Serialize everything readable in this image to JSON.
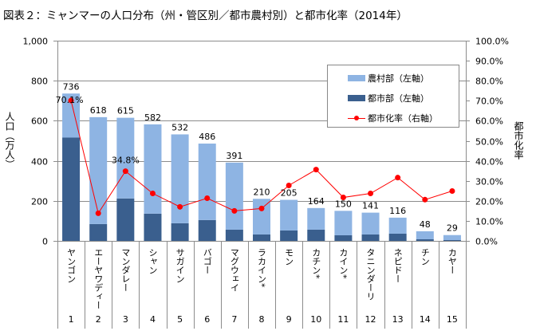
{
  "title": "図表２：ミャンマーの人口分布（州・管区別／都市農村別）と都市化率（2014年）",
  "chart_data": {
    "type": "bar",
    "stacked": true,
    "title": "図表２：ミャンマーの人口分布（州・管区別／都市農村別）と都市化率（2014年）",
    "categories": [
      "ヤンゴン",
      "エーヤワディー",
      "マンダレー",
      "シャン",
      "サガイン",
      "バゴー",
      "マグウェイ",
      "ラカイン*",
      "モン",
      "カチン*",
      "カイン*",
      "タニンダーリ",
      "ネピドー",
      "チン",
      "カヤー"
    ],
    "ranks": [
      "1",
      "2",
      "3",
      "4",
      "5",
      "6",
      "7",
      "8",
      "9",
      "10",
      "11",
      "12",
      "13",
      "14",
      "15"
    ],
    "totals": [
      736,
      618,
      615,
      582,
      532,
      486,
      391,
      210,
      205,
      164,
      150,
      141,
      116,
      48,
      29
    ],
    "total_labels": [
      "736",
      "618",
      "615",
      "582",
      "532",
      "486",
      "391",
      "210",
      "205",
      "164",
      "150",
      "141",
      "116",
      "48",
      "29"
    ],
    "series": [
      {
        "name": "都市部（左軸）",
        "axis": "left",
        "color": "#3a5f8e",
        "values": [
          516,
          84,
          212,
          136,
          88,
          104,
          56,
          32,
          52,
          56,
          28,
          32,
          36,
          8,
          4
        ]
      },
      {
        "name": "農村部（左軸）",
        "axis": "left",
        "color": "#8eb4e3",
        "values": [
          220,
          534,
          403,
          446,
          444,
          382,
          335,
          178,
          153,
          108,
          122,
          109,
          80,
          40,
          25
        ]
      },
      {
        "name": "都市化率（右軸）",
        "axis": "right",
        "type": "line",
        "color": "#ff0000",
        "values": [
          70.1,
          13.8,
          34.8,
          23.7,
          17.0,
          21.3,
          15.0,
          16.2,
          27.7,
          35.6,
          21.7,
          23.7,
          31.6,
          20.6,
          24.9
        ]
      }
    ],
    "rate_annotations": [
      {
        "index": 0,
        "text": "70.1%"
      },
      {
        "index": 2,
        "text": "34.8%"
      }
    ],
    "ylabel": "人口（万人）",
    "y2label": "都市化率",
    "ylim": [
      0,
      1000
    ],
    "y2lim": [
      0,
      100
    ],
    "yticks": [
      "0",
      "200",
      "400",
      "600",
      "800",
      "1,000"
    ],
    "y2ticks": [
      "0.0%",
      "10.0%",
      "20.0%",
      "30.0%",
      "40.0%",
      "50.0%",
      "60.0%",
      "70.0%",
      "80.0%",
      "90.0%",
      "100.0%"
    ],
    "grid": true,
    "legend": {
      "position": "top-right",
      "items": [
        "農村部（左軸）",
        "都市部（左軸）",
        "都市化率（右軸）"
      ]
    }
  }
}
